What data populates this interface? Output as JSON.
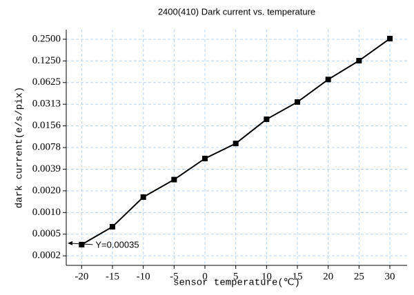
{
  "chart_data": {
    "type": "line",
    "title": "2400(410) Dark current vs. temperature",
    "x_label": "sensor temperature(℃)",
    "y_label": "dark current(e/s/pix)",
    "annotation": "Y=0.00035",
    "x": [
      -20,
      -15,
      -10,
      -5,
      0,
      5,
      10,
      15,
      20,
      25,
      30
    ],
    "series": [
      {
        "color": "#000000",
        "values": [
          0.00035,
          0.00062,
          0.0016,
          0.0028,
          0.0055,
          0.0089,
          0.0193,
          0.0335,
          0.069,
          0.126,
          0.255
        ]
      }
    ],
    "xlim": [
      -22.5,
      32.8
    ],
    "xticks": [
      -20,
      -15,
      -10,
      -5,
      0,
      5,
      10,
      15,
      20,
      25,
      30
    ],
    "ylim": [
      0.00018,
      0.34
    ],
    "yscale": "log",
    "yticks": [
      {
        "value": 0.000244140625,
        "label": "0.0002"
      },
      {
        "value": 0.00048828125,
        "label": "0.0005"
      },
      {
        "value": 0.0009765625,
        "label": "0.0010"
      },
      {
        "value": 0.001953125,
        "label": "0.0020"
      },
      {
        "value": 0.00390625,
        "label": "0.0039"
      },
      {
        "value": 0.0078125,
        "label": "0.0078"
      },
      {
        "value": 0.015625,
        "label": "0.0156"
      },
      {
        "value": 0.03125,
        "label": "0.0313"
      },
      {
        "value": 0.0625,
        "label": "0.0625"
      },
      {
        "value": 0.125,
        "label": "0.1250"
      },
      {
        "value": 0.25,
        "label": "0.2500"
      }
    ],
    "grid": true,
    "grid_color": "#b8d4f0"
  }
}
